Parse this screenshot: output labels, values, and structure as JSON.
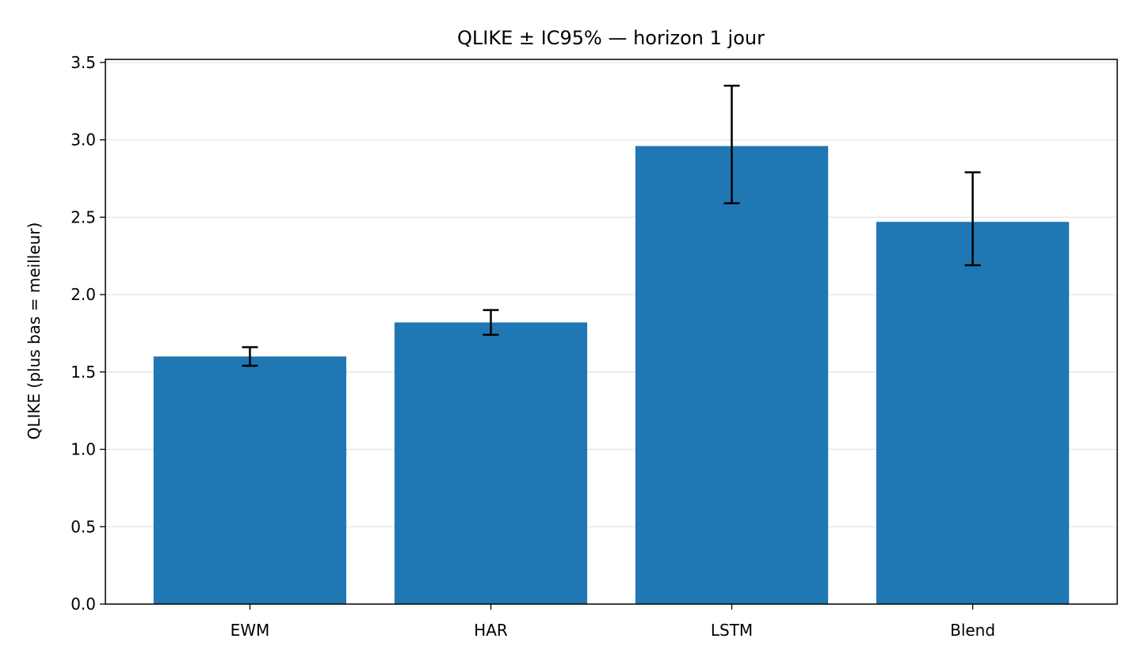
{
  "chart_data": {
    "type": "bar",
    "title": "QLIKE ± IC95% — horizon 1 jour",
    "xlabel": "",
    "ylabel": "QLIKE (plus bas = meilleur)",
    "categories": [
      "EWM",
      "HAR",
      "LSTM",
      "Blend"
    ],
    "values": [
      1.6,
      1.82,
      2.96,
      2.47
    ],
    "error_low": [
      1.54,
      1.74,
      2.59,
      2.19
    ],
    "error_high": [
      1.66,
      1.9,
      3.35,
      2.79
    ],
    "ylim": [
      0,
      3.52
    ],
    "yticks": [
      0.0,
      0.5,
      1.0,
      1.5,
      2.0,
      2.5,
      3.0,
      3.5
    ],
    "ytick_labels": [
      "0.0",
      "0.5",
      "1.0",
      "1.5",
      "2.0",
      "2.5",
      "3.0",
      "3.5"
    ],
    "grid": "horizontal",
    "legend": "none",
    "bar_color": "#1f77b4",
    "error_color": "#000000",
    "grid_color": "#e6e6e6"
  }
}
